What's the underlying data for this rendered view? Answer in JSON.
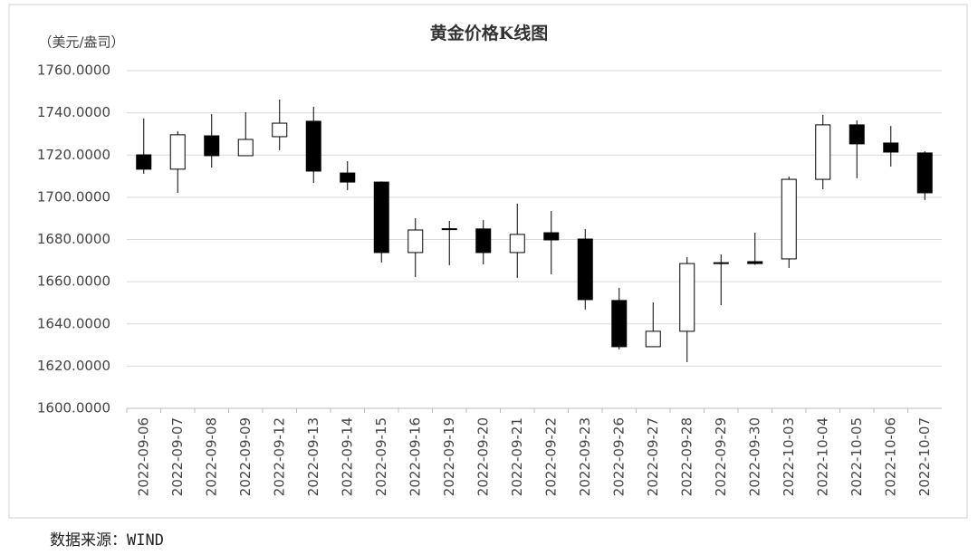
{
  "chart_data": {
    "type": "candlestick",
    "title": "黄金价格K线图",
    "y_label": "（美元/盎司）",
    "categories": [
      "2022-09-06",
      "2022-09-07",
      "2022-09-08",
      "2022-09-09",
      "2022-09-12",
      "2022-09-13",
      "2022-09-14",
      "2022-09-15",
      "2022-09-16",
      "2022-09-19",
      "2022-09-20",
      "2022-09-21",
      "2022-09-22",
      "2022-09-23",
      "2022-09-26",
      "2022-09-27",
      "2022-09-28",
      "2022-09-29",
      "2022-09-30",
      "2022-10-03",
      "2022-10-04",
      "2022-10-05",
      "2022-10-06",
      "2022-10-07"
    ],
    "open": [
      1720.1,
      1713.3,
      1729.1,
      1719.7,
      1728.7,
      1736.0,
      1711.5,
      1707.2,
      1673.8,
      1684.7,
      1685.0,
      1673.8,
      1683.2,
      1680.2,
      1651.1,
      1629.2,
      1636.5,
      1668.6,
      1669.5,
      1670.8,
      1708.5,
      1734.3,
      1725.7,
      1721.0
    ],
    "high": [
      1737.3,
      1731.3,
      1739.4,
      1740.3,
      1746.3,
      1742.9,
      1717.1,
      1707.5,
      1690.1,
      1688.8,
      1689.2,
      1697.0,
      1693.5,
      1684.9,
      1657.1,
      1650.2,
      1671.6,
      1672.9,
      1683.2,
      1709.8,
      1739.0,
      1736.4,
      1733.8,
      1721.8
    ],
    "low": [
      1711.1,
      1702.1,
      1714.1,
      1719.7,
      1722.3,
      1706.8,
      1703.4,
      1669.1,
      1662.2,
      1667.8,
      1668.2,
      1661.8,
      1663.5,
      1646.8,
      1627.9,
      1629.0,
      1621.9,
      1648.9,
      1668.0,
      1666.5,
      1703.8,
      1709.0,
      1714.5,
      1698.7
    ],
    "close": [
      1713.3,
      1729.6,
      1719.7,
      1727.4,
      1735.1,
      1712.4,
      1707.2,
      1673.8,
      1684.5,
      1685.1,
      1673.8,
      1682.4,
      1679.8,
      1651.5,
      1629.2,
      1636.5,
      1668.6,
      1669.0,
      1668.6,
      1708.5,
      1734.3,
      1725.3,
      1721.4,
      1702.1
    ],
    "up_color": "#ffffff",
    "down_color": "#000000",
    "ylim": [
      1600,
      1760
    ],
    "yticks": [
      {
        "value": 1600,
        "label": "1600.0000"
      },
      {
        "value": 1620,
        "label": "1620.0000"
      },
      {
        "value": 1640,
        "label": "1640.0000"
      },
      {
        "value": 1660,
        "label": "1660.0000"
      },
      {
        "value": 1680,
        "label": "1680.0000"
      },
      {
        "value": 1700,
        "label": "1700.0000"
      },
      {
        "value": 1720,
        "label": "1720.0000"
      },
      {
        "value": 1740,
        "label": "1740.0000"
      },
      {
        "value": 1760,
        "label": "1760.0000"
      }
    ],
    "grid": true
  },
  "source": "数据来源：WIND"
}
